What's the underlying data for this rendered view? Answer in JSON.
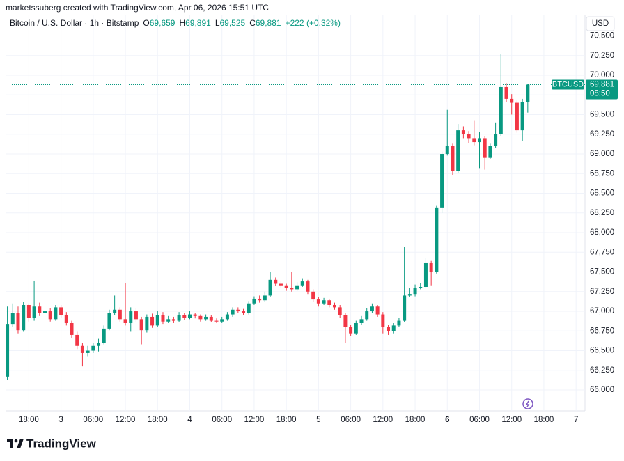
{
  "header": {
    "credit": "marketssuberg created with TradingView.com, Apr 06, 2026 15:51 UTC"
  },
  "legend": {
    "symbol": "Bitcoin / U.S. Dollar · 1h · Bitstamp",
    "ohlc": [
      {
        "label": "O",
        "value": "69,659"
      },
      {
        "label": "H",
        "value": "69,891"
      },
      {
        "label": "L",
        "value": "69,525"
      },
      {
        "label": "C",
        "value": "69,881"
      }
    ],
    "change": "+222 (+0.32%)"
  },
  "currency": "USD",
  "logo": "TradingView",
  "chart_data": {
    "type": "candlestick",
    "up_color": "#089981",
    "down_color": "#f23645",
    "grid": true,
    "xlim": [
      "2026-04-02 13:40",
      "2026-04-07 01:40"
    ],
    "xticks": [
      {
        "value": "2026-04-02 18:00",
        "label": "18:00"
      },
      {
        "value": "2026-04-03 00:00",
        "label": "3"
      },
      {
        "value": "2026-04-03 06:00",
        "label": "06:00"
      },
      {
        "value": "2026-04-03 12:00",
        "label": "12:00"
      },
      {
        "value": "2026-04-03 18:00",
        "label": "18:00"
      },
      {
        "value": "2026-04-04 00:00",
        "label": "4"
      },
      {
        "value": "2026-04-04 06:00",
        "label": "06:00"
      },
      {
        "value": "2026-04-04 12:00",
        "label": "12:00"
      },
      {
        "value": "2026-04-04 18:00",
        "label": "18:00"
      },
      {
        "value": "2026-04-05 00:00",
        "label": "5"
      },
      {
        "value": "2026-04-05 06:00",
        "label": "06:00"
      },
      {
        "value": "2026-04-05 12:00",
        "label": "12:00"
      },
      {
        "value": "2026-04-05 18:00",
        "label": "18:00"
      },
      {
        "value": "2026-04-06 00:00",
        "label": "6"
      },
      {
        "value": "2026-04-06 06:00",
        "label": "06:00"
      },
      {
        "value": "2026-04-06 12:00",
        "label": "12:00"
      },
      {
        "value": "2026-04-06 18:00",
        "label": "18:00"
      },
      {
        "value": "2026-04-07 00:00",
        "label": "7"
      }
    ],
    "ylim": [
      65735,
      70761
    ],
    "yticks": [
      {
        "value": 66000,
        "label": "66,000"
      },
      {
        "value": 66250,
        "label": "66,250"
      },
      {
        "value": 66500,
        "label": "66,500"
      },
      {
        "value": 66750,
        "label": "66,750"
      },
      {
        "value": 67000,
        "label": "67,000"
      },
      {
        "value": 67250,
        "label": "67,250"
      },
      {
        "value": 67500,
        "label": "67,500"
      },
      {
        "value": 67750,
        "label": "67,750"
      },
      {
        "value": 68000,
        "label": "68,000"
      },
      {
        "value": 68250,
        "label": "68,250"
      },
      {
        "value": 68500,
        "label": "68,500"
      },
      {
        "value": 68750,
        "label": "68,750"
      },
      {
        "value": 69000,
        "label": "69,000"
      },
      {
        "value": 69250,
        "label": "69,250"
      },
      {
        "value": 69500,
        "label": "69,500"
      },
      {
        "value": 69750,
        "label": "69,750"
      },
      {
        "value": 70000,
        "label": "70,000"
      },
      {
        "value": 70250,
        "label": "70,250"
      },
      {
        "value": 70500,
        "label": "70,500"
      }
    ],
    "last_price": 69881,
    "last_price_label": "69,881",
    "symbol_tag": "BTCUSD",
    "countdown": "08:50",
    "x": [
      "2026-04-02 14:00",
      "2026-04-02 15:00",
      "2026-04-02 16:00",
      "2026-04-02 17:00",
      "2026-04-02 18:00",
      "2026-04-02 19:00",
      "2026-04-02 20:00",
      "2026-04-02 21:00",
      "2026-04-02 22:00",
      "2026-04-02 23:00",
      "2026-04-03 00:00",
      "2026-04-03 01:00",
      "2026-04-03 02:00",
      "2026-04-03 03:00",
      "2026-04-03 04:00",
      "2026-04-03 05:00",
      "2026-04-03 06:00",
      "2026-04-03 07:00",
      "2026-04-03 08:00",
      "2026-04-03 09:00",
      "2026-04-03 10:00",
      "2026-04-03 11:00",
      "2026-04-03 12:00",
      "2026-04-03 13:00",
      "2026-04-03 14:00",
      "2026-04-03 15:00",
      "2026-04-03 16:00",
      "2026-04-03 17:00",
      "2026-04-03 18:00",
      "2026-04-03 19:00",
      "2026-04-03 20:00",
      "2026-04-03 21:00",
      "2026-04-03 22:00",
      "2026-04-03 23:00",
      "2026-04-04 00:00",
      "2026-04-04 01:00",
      "2026-04-04 02:00",
      "2026-04-04 03:00",
      "2026-04-04 04:00",
      "2026-04-04 05:00",
      "2026-04-04 06:00",
      "2026-04-04 07:00",
      "2026-04-04 08:00",
      "2026-04-04 09:00",
      "2026-04-04 10:00",
      "2026-04-04 11:00",
      "2026-04-04 12:00",
      "2026-04-04 13:00",
      "2026-04-04 14:00",
      "2026-04-04 15:00",
      "2026-04-04 16:00",
      "2026-04-04 17:00",
      "2026-04-04 18:00",
      "2026-04-04 19:00",
      "2026-04-04 20:00",
      "2026-04-04 21:00",
      "2026-04-04 22:00",
      "2026-04-04 23:00",
      "2026-04-05 00:00",
      "2026-04-05 01:00",
      "2026-04-05 02:00",
      "2026-04-05 03:00",
      "2026-04-05 04:00",
      "2026-04-05 05:00",
      "2026-04-05 06:00",
      "2026-04-05 07:00",
      "2026-04-05 08:00",
      "2026-04-05 09:00",
      "2026-04-05 10:00",
      "2026-04-05 11:00",
      "2026-04-05 12:00",
      "2026-04-05 13:00",
      "2026-04-05 14:00",
      "2026-04-05 15:00",
      "2026-04-05 16:00",
      "2026-04-05 17:00",
      "2026-04-05 18:00",
      "2026-04-05 19:00",
      "2026-04-05 20:00",
      "2026-04-05 21:00",
      "2026-04-05 22:00",
      "2026-04-05 23:00",
      "2026-04-06 00:00",
      "2026-04-06 01:00",
      "2026-04-06 02:00",
      "2026-04-06 03:00",
      "2026-04-06 04:00",
      "2026-04-06 05:00",
      "2026-04-06 06:00",
      "2026-04-06 07:00",
      "2026-04-06 08:00",
      "2026-04-06 09:00",
      "2026-04-06 10:00",
      "2026-04-06 11:00",
      "2026-04-06 12:00",
      "2026-04-06 13:00",
      "2026-04-06 14:00",
      "2026-04-06 15:00"
    ],
    "open": [
      66170,
      66840,
      66980,
      66760,
      67080,
      66920,
      67060,
      66980,
      67000,
      66900,
      67050,
      66950,
      66850,
      66700,
      66560,
      66470,
      66500,
      66560,
      66600,
      66780,
      66980,
      67020,
      66900,
      66850,
      67000,
      66900,
      66760,
      66930,
      66820,
      66950,
      66870,
      66900,
      66880,
      66950,
      66920,
      66960,
      66940,
      66900,
      66930,
      66880,
      66870,
      66900,
      66960,
      67020,
      67000,
      66980,
      67100,
      67160,
      67140,
      67200,
      67400,
      67350,
      67330,
      67300,
      67280,
      67330,
      67380,
      67250,
      67150,
      67100,
      67140,
      67080,
      67050,
      66950,
      66800,
      66720,
      66850,
      66900,
      67000,
      67060,
      66960,
      66800,
      66750,
      66820,
      66880,
      67200,
      67220,
      67300,
      67310,
      67620,
      67500,
      68320,
      69000,
      69100,
      68780,
      69300,
      69250,
      69200,
      69150,
      69200,
      68950,
      69100,
      69250,
      69850,
      69700,
      69650,
      69300,
      69659
    ],
    "high": [
      67060,
      67100,
      67060,
      67120,
      67100,
      67390,
      67110,
      67060,
      67040,
      67080,
      67080,
      66990,
      66880,
      66740,
      66600,
      66560,
      66600,
      66650,
      66820,
      67020,
      67200,
      67050,
      67360,
      67050,
      67040,
      66930,
      66960,
      66970,
      67000,
      66990,
      66940,
      66930,
      66990,
      66980,
      67000,
      66980,
      66960,
      66960,
      66950,
      66910,
      66930,
      66990,
      67050,
      67050,
      67030,
      67130,
      67190,
      67200,
      67250,
      67500,
      67430,
      67380,
      67350,
      67500,
      67370,
      67420,
      67400,
      67280,
      67180,
      67170,
      67160,
      67110,
      67080,
      66980,
      66830,
      66880,
      66940,
      67040,
      67100,
      67080,
      66990,
      66830,
      66850,
      66920,
      67820,
      67300,
      67340,
      67360,
      67680,
      67640,
      68340,
      69030,
      69560,
      69130,
      69380,
      69350,
      69290,
      69420,
      69280,
      69230,
      69130,
      69400,
      70270,
      69900,
      69760,
      69680,
      69700,
      69891
    ],
    "low": [
      66130,
      66800,
      66720,
      66740,
      66870,
      66880,
      66940,
      66950,
      66870,
      66880,
      66920,
      66820,
      66660,
      66520,
      66300,
      66430,
      66470,
      66490,
      66580,
      66760,
      66950,
      66870,
      66820,
      66740,
      66860,
      66580,
      66730,
      66790,
      66800,
      66840,
      66850,
      66850,
      66860,
      66890,
      66900,
      66910,
      66870,
      66880,
      66860,
      66850,
      66850,
      66880,
      66930,
      66980,
      66950,
      66960,
      67080,
      67110,
      67120,
      67180,
      67320,
      67300,
      67260,
      67250,
      67260,
      67310,
      67220,
      67120,
      67060,
      67080,
      67050,
      67020,
      66920,
      66600,
      66690,
      66700,
      66830,
      66880,
      66980,
      66930,
      66720,
      66700,
      66720,
      66800,
      66860,
      67180,
      67190,
      67280,
      67290,
      67330,
      67480,
      68250,
      68980,
      68730,
      68760,
      69200,
      69140,
      69110,
      68820,
      68800,
      68930,
      69080,
      69230,
      69660,
      69500,
      69270,
      69160,
      69525
    ],
    "close": [
      66840,
      66980,
      66760,
      67080,
      66920,
      67060,
      66980,
      67000,
      66900,
      67050,
      66950,
      66850,
      66700,
      66560,
      66470,
      66500,
      66560,
      66600,
      66780,
      66980,
      67020,
      66900,
      66850,
      67000,
      66900,
      66760,
      66930,
      66820,
      66950,
      66870,
      66900,
      66880,
      66950,
      66920,
      66960,
      66940,
      66900,
      66930,
      66880,
      66870,
      66900,
      66960,
      67020,
      67000,
      66980,
      67100,
      67160,
      67140,
      67200,
      67400,
      67350,
      67330,
      67300,
      67280,
      67330,
      67380,
      67250,
      67150,
      67100,
      67140,
      67080,
      67050,
      66950,
      66800,
      66720,
      66850,
      66900,
      67000,
      67060,
      66960,
      66800,
      66750,
      66820,
      66880,
      67200,
      67220,
      67300,
      67310,
      67620,
      67500,
      68320,
      69000,
      69100,
      68780,
      69300,
      69250,
      69200,
      69150,
      69200,
      68950,
      69100,
      69250,
      69850,
      69700,
      69650,
      69300,
      69659,
      69881
    ]
  }
}
